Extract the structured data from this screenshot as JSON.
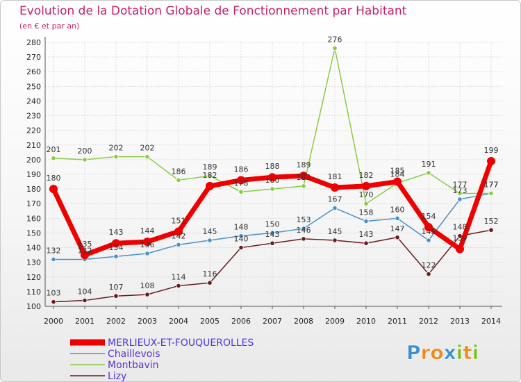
{
  "chart_data": {
    "type": "line",
    "title": "Evolution de la Dotation Globale de Fonctionnement par Habitant",
    "subtitle": "(en € et par an)",
    "x": [
      "2000",
      "2001",
      "2002",
      "2003",
      "2004",
      "2005",
      "2006",
      "2007",
      "2008",
      "2009",
      "2010",
      "2011",
      "2012",
      "2013",
      "2014"
    ],
    "ylim": [
      100,
      280
    ],
    "yticks": [
      100,
      110,
      120,
      130,
      140,
      150,
      160,
      170,
      180,
      190,
      200,
      210,
      220,
      230,
      240,
      250,
      260,
      270,
      280
    ],
    "series": [
      {
        "name": "Chaillevois",
        "color": "#4a90c8",
        "values": [
          132,
          132,
          134,
          136,
          142,
          145,
          148,
          150,
          153,
          167,
          158,
          160,
          145,
          173,
          177
        ]
      },
      {
        "name": "Montbavin",
        "color": "#88cc44",
        "values": [
          201,
          200,
          202,
          202,
          186,
          189,
          178,
          180,
          182,
          276,
          170,
          184,
          191,
          177,
          177
        ]
      },
      {
        "name": "Lizy",
        "color": "#6a1a1a",
        "values": [
          103,
          104,
          107,
          108,
          114,
          116,
          140,
          143,
          146,
          145,
          143,
          147,
          122,
          148,
          152
        ]
      },
      {
        "name": "MERLIEUX-ET-FOUQUEROLLES",
        "color": "#ee0000",
        "values": [
          180,
          135,
          143,
          144,
          151,
          182,
          186,
          188,
          189,
          181,
          182,
          185,
          154,
          139,
          199
        ]
      }
    ],
    "legend_order": [
      "MERLIEUX-ET-FOUQUEROLLES",
      "Chaillevois",
      "Montbavin",
      "Lizy"
    ],
    "legend_text_color": "#5533dd",
    "logo": {
      "text": "Proxiti",
      "letters": [
        {
          "ch": "P",
          "color": "#3b8fd0"
        },
        {
          "ch": "r",
          "color": "#f08a1c"
        },
        {
          "ch": "o",
          "color": "#f08a1c"
        },
        {
          "ch": "x",
          "color": "#3b8fd0"
        },
        {
          "ch": "i",
          "color": "#7bbf2a"
        },
        {
          "ch": "t",
          "color": "#f08a1c"
        },
        {
          "ch": "i",
          "color": "#7bbf2a"
        }
      ]
    }
  }
}
